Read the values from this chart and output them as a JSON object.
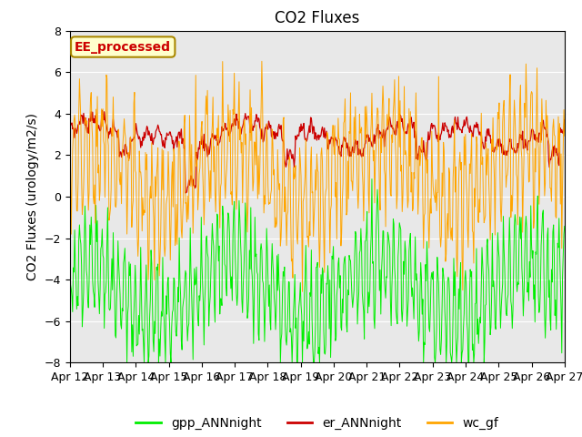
{
  "title": "CO2 Fluxes",
  "ylabel": "CO2 Fluxes (urology/m2/s)",
  "ylim": [
    -8,
    8
  ],
  "yticks": [
    -8,
    -6,
    -4,
    -2,
    0,
    2,
    4,
    6,
    8
  ],
  "x_tick_labels": [
    "Apr 12",
    "Apr 13",
    "Apr 14",
    "Apr 15",
    "Apr 16",
    "Apr 17",
    "Apr 18",
    "Apr 19",
    "Apr 20",
    "Apr 21",
    "Apr 22",
    "Apr 23",
    "Apr 24",
    "Apr 25",
    "Apr 26",
    "Apr 27"
  ],
  "series_colors": {
    "gpp_ANNnight": "#00ee00",
    "er_ANNnight": "#cc0000",
    "wc_gf": "#ffa500"
  },
  "annotation_text": "EE_processed",
  "annotation_color": "#cc0000",
  "annotation_bg": "#ffffcc",
  "annotation_border": "#aa8800",
  "plot_bg_color": "#e8e8e8",
  "title_fontsize": 12,
  "label_fontsize": 10,
  "tick_fontsize": 9,
  "legend_fontsize": 10,
  "n_points_per_day": 48,
  "n_days": 15
}
